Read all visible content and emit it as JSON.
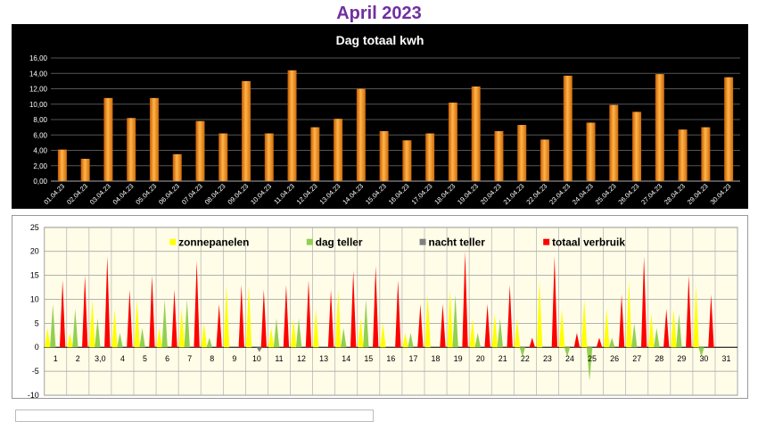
{
  "page": {
    "title": "April 2023"
  },
  "colors": {
    "title": "#7030a0",
    "bar": "#f08a1a",
    "zon": "#ffff00",
    "dag": "#92d050",
    "nacht": "#808080",
    "totaal": "#ff0000"
  },
  "chart_data": [
    {
      "type": "bar",
      "title": "Dag totaal kwh",
      "categories": [
        "01.04.23",
        "02.04.23",
        "03.04.23",
        "04.04.23",
        "05.04.23",
        "06.04.23",
        "07.04.23",
        "08.04.23",
        "09.04.23",
        "10.04.23",
        "11.04.23",
        "12.04.23",
        "13.04.23",
        "14.04.23",
        "15.04.23",
        "16.04.23",
        "17.04.23",
        "18.04.23",
        "19.04.23",
        "20.04.23",
        "21.04.23",
        "22.04.23",
        "23.04.23",
        "24.04.23",
        "25.04.23",
        "26.04.23",
        "27.04.23",
        "28.04.23",
        "29.04.23",
        "30.04.23"
      ],
      "values": [
        4.1,
        2.9,
        10.8,
        8.2,
        10.8,
        3.5,
        7.8,
        6.2,
        13.0,
        6.2,
        14.4,
        7.0,
        8.1,
        12.0,
        6.5,
        5.3,
        6.2,
        10.2,
        12.3,
        6.5,
        7.3,
        5.4,
        13.7,
        7.6,
        9.9,
        9.0,
        13.9,
        6.7,
        7.0,
        13.5
      ],
      "ylim": [
        0,
        16
      ],
      "yticks": [
        "0,00",
        "2,00",
        "4,00",
        "6,00",
        "8,00",
        "10,00",
        "12,00",
        "14,00",
        "16,00"
      ],
      "grid": true
    },
    {
      "type": "bar",
      "categories": [
        "1",
        "2",
        "3,0",
        "4",
        "5",
        "6",
        "7",
        "8",
        "9",
        "10",
        "11",
        "12",
        "13",
        "14",
        "15",
        "16",
        "17",
        "18",
        "19",
        "20",
        "21",
        "22",
        "23",
        "24",
        "25",
        "26",
        "27",
        "28",
        "29",
        "30",
        "31"
      ],
      "series": [
        {
          "name": "zonnepanelen",
          "values": [
            4,
            3,
            10,
            8,
            10,
            4,
            8,
            5,
            13,
            13,
            4,
            6,
            8,
            12,
            6,
            5,
            3,
            11,
            12,
            6,
            7,
            6,
            14,
            8,
            10,
            8,
            14,
            7,
            8,
            13,
            0
          ]
        },
        {
          "name": "dag teller",
          "values": [
            9,
            8,
            6,
            3,
            4,
            10,
            10,
            2,
            0,
            0,
            6,
            6,
            0,
            4,
            10,
            0,
            3,
            0,
            11,
            3,
            6,
            -2,
            0,
            -2,
            -7,
            2,
            5,
            4,
            7,
            -2,
            0
          ]
        },
        {
          "name": "nacht teller",
          "values": [
            0,
            0,
            0,
            0,
            0,
            0,
            0,
            0,
            0,
            -1,
            0,
            0,
            0,
            0,
            0,
            0,
            0,
            0,
            0,
            0,
            0,
            0,
            0,
            0,
            0,
            0,
            0,
            0,
            0,
            0,
            0
          ]
        },
        {
          "name": "totaal verbruik",
          "values": [
            14,
            15,
            19,
            12,
            15,
            12,
            18,
            9,
            13,
            12,
            13,
            14,
            12,
            16,
            17,
            14,
            9,
            9,
            20,
            9,
            13,
            2,
            19,
            3,
            2,
            11,
            19,
            8,
            15,
            11,
            0
          ]
        }
      ],
      "ylim": [
        -10,
        25
      ],
      "yticks": [
        "-10",
        "-5",
        "0",
        "5",
        "10",
        "15",
        "20",
        "25"
      ],
      "grid": true,
      "legend": "top"
    }
  ]
}
